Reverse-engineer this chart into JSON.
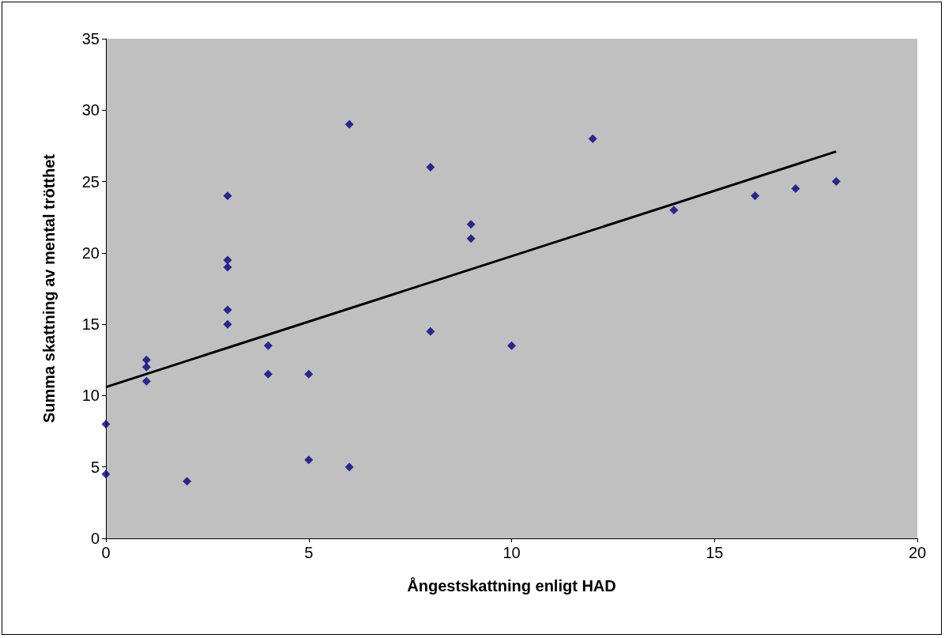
{
  "chart_data": {
    "type": "scatter",
    "xlabel": "Ångestskattning enligt HAD",
    "ylabel": "Summa skattning av mental trötthet",
    "xlim": [
      0,
      20
    ],
    "xticks": [
      0,
      5,
      10,
      15,
      20
    ],
    "ylim": [
      0,
      35
    ],
    "yticks": [
      0,
      5,
      10,
      15,
      20,
      25,
      30,
      35
    ],
    "grid": false,
    "series": [
      {
        "color": "#000080",
        "marker": "diamond",
        "x": [
          0,
          0,
          1,
          1,
          1,
          2,
          3,
          3,
          3,
          3,
          3,
          4,
          4,
          5,
          5,
          6,
          6,
          8,
          8,
          9,
          9,
          10,
          12,
          14,
          16,
          17,
          18
        ],
        "values": [
          8,
          4.5,
          12.5,
          12,
          11,
          4,
          24,
          19.5,
          19,
          16,
          15,
          13.5,
          11.5,
          11.5,
          5.5,
          29,
          5,
          26,
          14.5,
          22,
          21,
          13.5,
          28,
          23,
          24,
          24.5,
          25
        ]
      },
      {
        "type": "line",
        "color": "#000000",
        "marker": "none",
        "line_style": "solid",
        "x": [
          0,
          18
        ],
        "values": [
          10.6,
          27.1
        ]
      }
    ]
  }
}
